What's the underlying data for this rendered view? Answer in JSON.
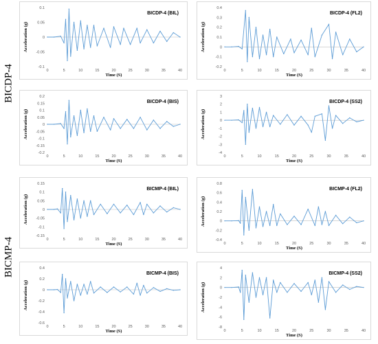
{
  "groups": [
    {
      "label": "BICDP-4"
    },
    {
      "label": "BICMP-4"
    }
  ],
  "chart_data": [
    {
      "type": "line",
      "title": "BICDP-4 (BIL)",
      "xlabel": "Time (S)",
      "ylabel": "Acceleration (g)",
      "xlim": [
        0,
        40
      ],
      "ylim": [
        -0.1,
        0.1
      ],
      "xticks": [
        0,
        5,
        10,
        15,
        20,
        25,
        30,
        35,
        40
      ],
      "yticks": [
        -0.1,
        -0.05,
        0,
        0.05,
        0.1
      ],
      "ytick_labels": [
        "-0.1",
        "-0.05",
        "0",
        "0.05",
        "0.1"
      ],
      "color": "#5b9bd5",
      "grid": false,
      "x": [
        0,
        2,
        4,
        5,
        5.5,
        6,
        6.5,
        7,
        8,
        9,
        10,
        11,
        12,
        13,
        14,
        15,
        17,
        19,
        20,
        22,
        23,
        25,
        27,
        28,
        30,
        32,
        34,
        36,
        38,
        40
      ],
      "y": [
        0,
        0,
        0.003,
        -0.02,
        0.06,
        -0.08,
        0.095,
        -0.065,
        0.05,
        -0.045,
        0.055,
        -0.04,
        0.04,
        -0.035,
        0.04,
        -0.03,
        0.03,
        -0.035,
        0.035,
        -0.025,
        0.03,
        -0.025,
        0.03,
        -0.02,
        0.025,
        -0.02,
        0.02,
        -0.015,
        0.015,
        0
      ]
    },
    {
      "type": "line",
      "title": "BICDP-4 (FL2)",
      "xlabel": "Time (S)",
      "ylabel": "Acceleration (g)",
      "xlim": [
        0,
        40
      ],
      "ylim": [
        -0.2,
        0.4
      ],
      "xticks": [
        0,
        5,
        10,
        15,
        20,
        25,
        30,
        35,
        40
      ],
      "yticks": [
        -0.2,
        -0.1,
        0,
        0.1,
        0.2,
        0.3,
        0.4
      ],
      "ytick_labels": [
        "-0.2",
        "-0.1",
        "0",
        "0.1",
        "0.2",
        "0.3",
        "0.4"
      ],
      "color": "#5b9bd5",
      "grid": false,
      "x": [
        0,
        2,
        4,
        5,
        6,
        6.5,
        7,
        8,
        9,
        10,
        11,
        12,
        13,
        14,
        15,
        17,
        19,
        20,
        22,
        24,
        25,
        26,
        28,
        30,
        31,
        32,
        34,
        36,
        38,
        40
      ],
      "y": [
        0,
        0,
        0.005,
        -0.02,
        0.37,
        -0.15,
        0.3,
        -0.1,
        0.2,
        -0.12,
        0.12,
        -0.08,
        0.18,
        -0.1,
        0.1,
        -0.07,
        0.08,
        -0.06,
        0.07,
        -0.08,
        0.19,
        -0.1,
        0.12,
        0.23,
        -0.12,
        0.15,
        -0.08,
        0.08,
        -0.05,
        0
      ]
    },
    {
      "type": "line",
      "title": "BICDP-4 (BIS)",
      "xlabel": "Time (S)",
      "ylabel": "Acceleration (g)",
      "xlim": [
        0,
        40
      ],
      "ylim": [
        -0.2,
        0.2
      ],
      "xticks": [
        0,
        5,
        10,
        15,
        20,
        25,
        30,
        35,
        40
      ],
      "yticks": [
        -0.2,
        -0.15,
        -0.1,
        -0.05,
        0,
        0.05,
        0.1,
        0.15,
        0.2
      ],
      "ytick_labels": [
        "-0.2",
        "-0.15",
        "-0.1",
        "-0.05",
        "0",
        "0.05",
        "0.1",
        "0.15",
        "0.2"
      ],
      "color": "#5b9bd5",
      "grid": false,
      "x": [
        0,
        2,
        4,
        5,
        5.5,
        6,
        6.5,
        7,
        8,
        9,
        10,
        11,
        12,
        13,
        14,
        15,
        17,
        19,
        20,
        22,
        24,
        26,
        28,
        30,
        32,
        34,
        36,
        38,
        40
      ],
      "y": [
        0,
        0,
        0.005,
        -0.03,
        0.09,
        -0.14,
        0.17,
        -0.09,
        0.06,
        -0.08,
        0.1,
        -0.06,
        0.11,
        -0.05,
        0.06,
        -0.05,
        0.05,
        -0.04,
        0.04,
        -0.03,
        0.035,
        -0.03,
        0.05,
        -0.04,
        0.03,
        -0.03,
        0.02,
        -0.015,
        0
      ]
    },
    {
      "type": "line",
      "title": "BICDP-4 (SS2)",
      "xlabel": "Time (S)",
      "ylabel": "Acceleration (g)",
      "xlim": [
        0,
        40
      ],
      "ylim": [
        -4,
        3
      ],
      "xticks": [
        0,
        5,
        10,
        15,
        20,
        25,
        30,
        35,
        40
      ],
      "yticks": [
        -4,
        -3,
        -2,
        -1,
        0,
        1,
        2,
        3
      ],
      "ytick_labels": [
        "-4",
        "-3",
        "-2",
        "-1",
        "0",
        "1",
        "2",
        "3"
      ],
      "color": "#5b9bd5",
      "grid": false,
      "x": [
        0,
        2,
        4,
        5,
        5.5,
        6,
        6.5,
        7,
        8,
        9,
        10,
        11,
        12,
        13,
        14,
        16,
        18,
        20,
        22,
        24,
        25,
        26,
        28,
        29,
        30,
        31,
        32,
        34,
        36,
        38,
        40
      ],
      "y": [
        0,
        0,
        0.05,
        -0.3,
        1.2,
        -3,
        2,
        -1.5,
        1.5,
        -1,
        1.6,
        -0.8,
        1,
        -0.8,
        0.6,
        -0.5,
        0.7,
        -0.6,
        0.5,
        -0.6,
        -1.5,
        0.5,
        0.8,
        -2.5,
        1.8,
        -1,
        0.6,
        -0.4,
        0.3,
        -0.2,
        0
      ]
    },
    {
      "type": "line",
      "title": "BICMP-4 (BIL)",
      "xlabel": "Time (S)",
      "ylabel": "Acceleration (g)",
      "xlim": [
        0,
        40
      ],
      "ylim": [
        -0.15,
        0.15
      ],
      "xticks": [
        0,
        5,
        10,
        15,
        20,
        25,
        30,
        35,
        40
      ],
      "yticks": [
        -0.15,
        -0.1,
        -0.05,
        0,
        0.05,
        0.1,
        0.15
      ],
      "ytick_labels": [
        "-0.15",
        "-0.1",
        "-0.05",
        "0",
        "0.05",
        "0.1",
        "0.15"
      ],
      "color": "#5b9bd5",
      "grid": false,
      "x": [
        0,
        2,
        3,
        4,
        4.5,
        5,
        5.5,
        6,
        7,
        8,
        9,
        10,
        11,
        12,
        13,
        14,
        16,
        18,
        20,
        22,
        24,
        26,
        28,
        29,
        30,
        32,
        34,
        36,
        38,
        40
      ],
      "y": [
        0,
        0,
        0.003,
        -0.02,
        0.12,
        -0.11,
        0.1,
        -0.07,
        0.08,
        -0.06,
        0.06,
        -0.05,
        0.05,
        -0.04,
        0.05,
        -0.03,
        0.03,
        -0.025,
        0.03,
        -0.02,
        0.025,
        -0.03,
        0.04,
        -0.03,
        0.03,
        -0.02,
        0.02,
        -0.015,
        0.01,
        0
      ]
    },
    {
      "type": "line",
      "title": "BICMP-4 (FL2)",
      "xlabel": "Time (S)",
      "ylabel": "Acceleration (g)",
      "xlim": [
        0,
        40
      ],
      "ylim": [
        -0.4,
        0.8
      ],
      "xticks": [
        0,
        5,
        10,
        15,
        20,
        25,
        30,
        35,
        40
      ],
      "yticks": [
        -0.4,
        -0.2,
        0,
        0.2,
        0.4,
        0.6,
        0.8
      ],
      "ytick_labels": [
        "-0.4",
        "-0.2",
        "0",
        "0.2",
        "0.4",
        "0.6",
        "0.8"
      ],
      "color": "#5b9bd5",
      "grid": false,
      "x": [
        0,
        2,
        4,
        4.5,
        5,
        5.5,
        6,
        7,
        8,
        9,
        10,
        11,
        12,
        13,
        14,
        15,
        16,
        18,
        20,
        22,
        24,
        26,
        27,
        28,
        29,
        30,
        32,
        34,
        36,
        38,
        40
      ],
      "y": [
        0,
        0,
        0.005,
        -0.05,
        0.65,
        -0.3,
        0.5,
        -0.2,
        0.67,
        -0.15,
        0.3,
        -0.12,
        0.2,
        -0.1,
        0.35,
        -0.1,
        0.15,
        -0.08,
        0.1,
        -0.08,
        0.25,
        -0.1,
        0.3,
        -0.08,
        0.2,
        -0.1,
        0.12,
        -0.06,
        0.08,
        -0.04,
        0
      ]
    },
    {
      "type": "line",
      "title": "BICMP-4 (BIS)",
      "xlabel": "Time (S)",
      "ylabel": "Acceleration (g)",
      "xlim": [
        0,
        40
      ],
      "ylim": [
        -0.6,
        0.4
      ],
      "xticks": [
        0,
        5,
        10,
        15,
        20,
        25,
        30,
        35,
        40
      ],
      "yticks": [
        -0.6,
        -0.4,
        -0.2,
        0,
        0.2,
        0.4
      ],
      "ytick_labels": [
        "-0.6",
        "-0.4",
        "-0.2",
        "0",
        "0.2",
        "0.4"
      ],
      "color": "#5b9bd5",
      "grid": false,
      "x": [
        0,
        2,
        3,
        4,
        4.5,
        5,
        5.5,
        6,
        7,
        8,
        9,
        10,
        11,
        12,
        13,
        14,
        16,
        18,
        20,
        22,
        24,
        26,
        27,
        28,
        29,
        30,
        32,
        34,
        36,
        38,
        40
      ],
      "y": [
        0,
        0,
        0.005,
        -0.05,
        0.28,
        -0.42,
        0.2,
        -0.15,
        0.15,
        -0.2,
        0.1,
        -0.1,
        0.1,
        -0.08,
        0.15,
        -0.06,
        0.05,
        -0.05,
        0.05,
        -0.04,
        0.05,
        -0.08,
        0.12,
        -0.1,
        0.08,
        -0.06,
        0.04,
        -0.03,
        0.02,
        -0.01,
        0
      ]
    },
    {
      "type": "line",
      "title": "BICMP-4 (SS2)",
      "xlabel": "Time (S)",
      "ylabel": "Acceleration (g)",
      "xlim": [
        0,
        40
      ],
      "ylim": [
        -8,
        4
      ],
      "xticks": [
        0,
        5,
        10,
        15,
        20,
        25,
        30,
        35,
        40
      ],
      "yticks": [
        -8,
        -6,
        -4,
        -2,
        0,
        2,
        4
      ],
      "ytick_labels": [
        "-8",
        "-6",
        "-4",
        "-2",
        "0",
        "2",
        "4"
      ],
      "color": "#5b9bd5",
      "grid": false,
      "x": [
        0,
        2,
        4,
        4.5,
        5,
        5.5,
        6,
        7,
        8,
        9,
        10,
        11,
        12,
        13,
        14,
        15,
        16,
        18,
        20,
        22,
        24,
        25,
        26,
        27,
        28,
        29,
        30,
        32,
        34,
        36,
        38,
        40
      ],
      "y": [
        0,
        0,
        0.1,
        -1,
        3.5,
        -6.5,
        2.5,
        -3,
        3,
        -2,
        2,
        -1.5,
        2,
        -6.2,
        1.5,
        -1,
        1,
        -1,
        0.8,
        -0.8,
        1,
        -1.5,
        1.5,
        -3,
        2,
        -4.5,
        1.2,
        -1,
        0.5,
        -0.4,
        0.2,
        0
      ]
    }
  ]
}
